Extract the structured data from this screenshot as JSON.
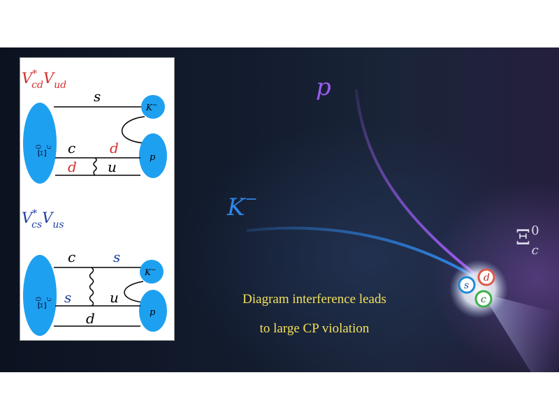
{
  "scene": {
    "particles": {
      "proton_label": "p",
      "kaon_label": "K",
      "kaon_charge": "−",
      "xi_symbol": "Ξ",
      "xi_sup": "0",
      "xi_sub": "c"
    },
    "quarks": [
      "s",
      "d",
      "c"
    ],
    "caption": {
      "line1": "Diagram interference leads",
      "line2": "to large CP violation"
    },
    "colors": {
      "proton_track": "#9b5cf0",
      "kaon_track": "#2f86e8",
      "caption_text": "#f2e15a",
      "hadron_blob": "#1ea0f0"
    }
  },
  "diagram_top": {
    "ckm": {
      "v1": "V",
      "star": "*",
      "sub1": "cd",
      "v2": "V",
      "sub2": "ud"
    },
    "labels": {
      "top_quark": "s",
      "c": "c",
      "d_right": "d",
      "d_left": "d",
      "u": "u",
      "kaon": "K",
      "kaon_charge": "−",
      "proton": "p"
    },
    "xi": {
      "symbol": "Ξ",
      "sup": "0",
      "sub": "c"
    },
    "color": "#d0312d"
  },
  "diagram_bottom": {
    "ckm": {
      "v1": "V",
      "star": "*",
      "sub1": "cs",
      "v2": "V",
      "sub2": "us"
    },
    "labels": {
      "c": "c",
      "s_right": "s",
      "s_left": "s",
      "u": "u",
      "d": "d",
      "kaon": "K",
      "kaon_charge": "−",
      "proton": "p"
    },
    "xi": {
      "symbol": "Ξ",
      "sup": "0",
      "sub": "c"
    },
    "color": "#1f3fa0"
  }
}
